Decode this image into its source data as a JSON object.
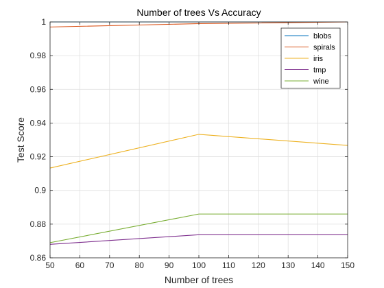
{
  "chart_data": {
    "type": "line",
    "title": "Number of trees Vs Accuracy",
    "xlabel": "Number of trees",
    "ylabel": "Test Score",
    "xlim": [
      50,
      150
    ],
    "ylim": [
      0.86,
      1.0
    ],
    "xticks": [
      50,
      60,
      70,
      80,
      90,
      100,
      110,
      120,
      130,
      140,
      150
    ],
    "yticks": [
      0.86,
      0.88,
      0.9,
      0.92,
      0.94,
      0.96,
      0.98,
      1
    ],
    "ytick_labels": [
      "0.86",
      "0.88",
      "0.9",
      "0.92",
      "0.94",
      "0.96",
      "0.98",
      "1"
    ],
    "grid": true,
    "legend_position": "top-right",
    "x": [
      50,
      100,
      150
    ],
    "series": [
      {
        "name": "blobs",
        "color": "#0072BD",
        "values": [
          1.0,
          1.0,
          1.0
        ]
      },
      {
        "name": "spirals",
        "color": "#D95319",
        "values": [
          0.997,
          0.999,
          1.0
        ]
      },
      {
        "name": "iris",
        "color": "#EDB120",
        "values": [
          0.9133,
          0.9333,
          0.9267
        ]
      },
      {
        "name": "tmp",
        "color": "#7E2F8E",
        "values": [
          0.868,
          0.8737,
          0.8737
        ]
      },
      {
        "name": "wine",
        "color": "#77AC30",
        "values": [
          0.869,
          0.886,
          0.886
        ]
      }
    ]
  }
}
